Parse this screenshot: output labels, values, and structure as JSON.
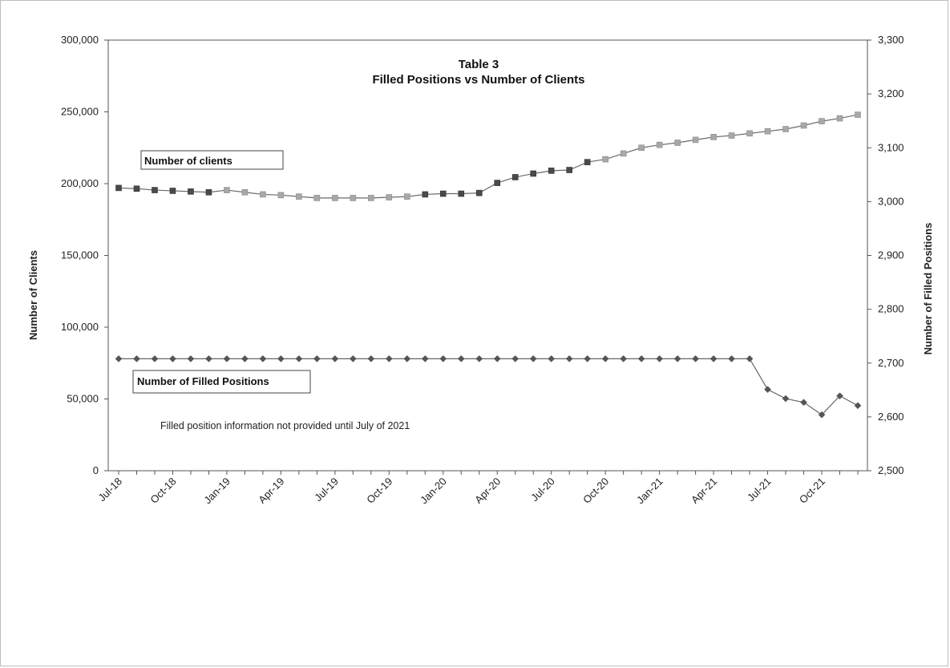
{
  "chart_data": {
    "type": "line",
    "title": "Table 3",
    "subtitle": "Filled Positions vs Number of Clients",
    "ylabel_left": "Number of Clients",
    "ylabel_right": "Number of Filled Positions",
    "ylim_left": [
      0,
      300000
    ],
    "ylim_right": [
      2500,
      3300
    ],
    "yticks_left": [
      "0",
      "50,000",
      "100,000",
      "150,000",
      "200,000",
      "250,000",
      "300,000"
    ],
    "yticks_right": [
      "2,500",
      "2,600",
      "2,700",
      "2,800",
      "2,900",
      "3,000",
      "3,100",
      "3,200",
      "3,300"
    ],
    "x": [
      "Jul-18",
      "Aug-18",
      "Sep-18",
      "Oct-18",
      "Nov-18",
      "Dec-18",
      "Jan-19",
      "Feb-19",
      "Mar-19",
      "Apr-19",
      "May-19",
      "Jun-19",
      "Jul-19",
      "Aug-19",
      "Sep-19",
      "Oct-19",
      "Nov-19",
      "Dec-19",
      "Jan-20",
      "Feb-20",
      "Mar-20",
      "Apr-20",
      "May-20",
      "Jun-20",
      "Jul-20",
      "Aug-20",
      "Sep-20",
      "Oct-20",
      "Nov-20",
      "Dec-20",
      "Jan-21",
      "Feb-21",
      "Mar-21",
      "Apr-21",
      "May-21",
      "Jun-21",
      "Jul-21",
      "Aug-21",
      "Sep-21",
      "Oct-21",
      "Nov-21",
      "Dec-21"
    ],
    "xtick_labels": [
      "Jul-18",
      "Oct-18",
      "Jan-19",
      "Apr-19",
      "Jul-19",
      "Oct-19",
      "Jan-20",
      "Apr-20",
      "Jul-20",
      "Oct-20",
      "Jan-21",
      "Apr-21",
      "Jul-21",
      "Oct-21"
    ],
    "series": [
      {
        "name": "Number of clients",
        "axis": "left",
        "marker": "square",
        "color": "#9a9a9a",
        "values": [
          197000,
          196500,
          195500,
          195000,
          194500,
          194000,
          195500,
          194000,
          192500,
          192000,
          191000,
          190000,
          190000,
          190000,
          190000,
          190500,
          191000,
          192500,
          193000,
          193000,
          193500,
          200500,
          204500,
          207000,
          209000,
          209500,
          215000,
          217000,
          221000,
          225000,
          227000,
          228500,
          230500,
          232500,
          233500,
          235000,
          236500,
          238000,
          240500,
          243500,
          245500,
          248000
        ]
      },
      {
        "name": "Number of Filled Positions",
        "axis": "right",
        "marker": "diamond",
        "color": "#555555",
        "values": [
          2708,
          2708,
          2708,
          2708,
          2708,
          2708,
          2708,
          2708,
          2708,
          2708,
          2708,
          2708,
          2708,
          2708,
          2708,
          2708,
          2708,
          2708,
          2708,
          2708,
          2708,
          2708,
          2708,
          2708,
          2708,
          2708,
          2708,
          2708,
          2708,
          2708,
          2708,
          2708,
          2708,
          2708,
          2708,
          2708,
          2651,
          2634,
          2627,
          2604,
          2639,
          2621
        ]
      }
    ],
    "annotation": "Filled position information not provided until July of 2021",
    "grid": false
  }
}
